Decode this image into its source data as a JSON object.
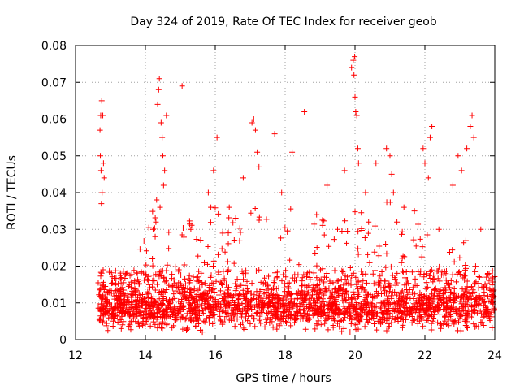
{
  "chart_data": {
    "type": "scatter",
    "title": "Day 324 of 2019, Rate Of TEC Index for receiver geob",
    "xlabel": "GPS time / hours",
    "ylabel": "ROTI / TECUs",
    "xlim": [
      12,
      24
    ],
    "ylim": [
      0,
      0.08
    ],
    "xticks": [
      "12",
      "14",
      "16",
      "18",
      "20",
      "22",
      "24"
    ],
    "yticks": [
      "0",
      "0.01",
      "0.02",
      "0.03",
      "0.04",
      "0.05",
      "0.06",
      "0.07",
      "0.08"
    ],
    "grid": true,
    "marker": "+",
    "marker_color": "#ff0000",
    "series": [
      {
        "name": "ROTI",
        "x": [
          12.7,
          12.72,
          12.75,
          12.78,
          12.8,
          12.82,
          12.76,
          12.74,
          12.73,
          12.71,
          12.79,
          12.85,
          13.2,
          13.6,
          14.2,
          14.28,
          14.3,
          14.32,
          14.35,
          14.38,
          14.4,
          14.45,
          14.5,
          14.55,
          14.6,
          14.25,
          14.22,
          14.48,
          14.52,
          14.42,
          15.05,
          15.3,
          15.55,
          15.8,
          15.95,
          16.05,
          16.4,
          16.8,
          17.05,
          17.1,
          17.15,
          17.2,
          17.25,
          17.7,
          17.9,
          18.2,
          18.55,
          18.9,
          19.2,
          19.5,
          19.7,
          19.9,
          19.95,
          19.97,
          20.0,
          20.02,
          20.05,
          20.08,
          20.1,
          19.99,
          20.3,
          20.6,
          20.9,
          21.0,
          21.05,
          21.1,
          21.2,
          21.4,
          21.7,
          21.95,
          22.0,
          22.1,
          22.15,
          22.2,
          22.4,
          22.8,
          22.95,
          23.05,
          23.2,
          23.3,
          23.35,
          23.4,
          23.6,
          23.8,
          23.95
        ],
        "y": [
          0.057,
          0.061,
          0.065,
          0.061,
          0.048,
          0.044,
          0.04,
          0.037,
          0.046,
          0.05,
          0.019,
          0.011,
          0.009,
          0.01,
          0.022,
          0.028,
          0.032,
          0.038,
          0.064,
          0.068,
          0.071,
          0.059,
          0.05,
          0.046,
          0.061,
          0.016,
          0.03,
          0.055,
          0.042,
          0.036,
          0.069,
          0.03,
          0.014,
          0.04,
          0.046,
          0.055,
          0.036,
          0.044,
          0.059,
          0.06,
          0.057,
          0.051,
          0.047,
          0.056,
          0.04,
          0.051,
          0.062,
          0.034,
          0.042,
          0.03,
          0.046,
          0.074,
          0.076,
          0.072,
          0.066,
          0.062,
          0.061,
          0.052,
          0.048,
          0.077,
          0.04,
          0.048,
          0.052,
          0.05,
          0.045,
          0.04,
          0.032,
          0.036,
          0.035,
          0.052,
          0.048,
          0.044,
          0.055,
          0.058,
          0.03,
          0.042,
          0.05,
          0.046,
          0.052,
          0.058,
          0.061,
          0.055,
          0.03,
          0.018,
          0.012
        ]
      }
    ]
  }
}
